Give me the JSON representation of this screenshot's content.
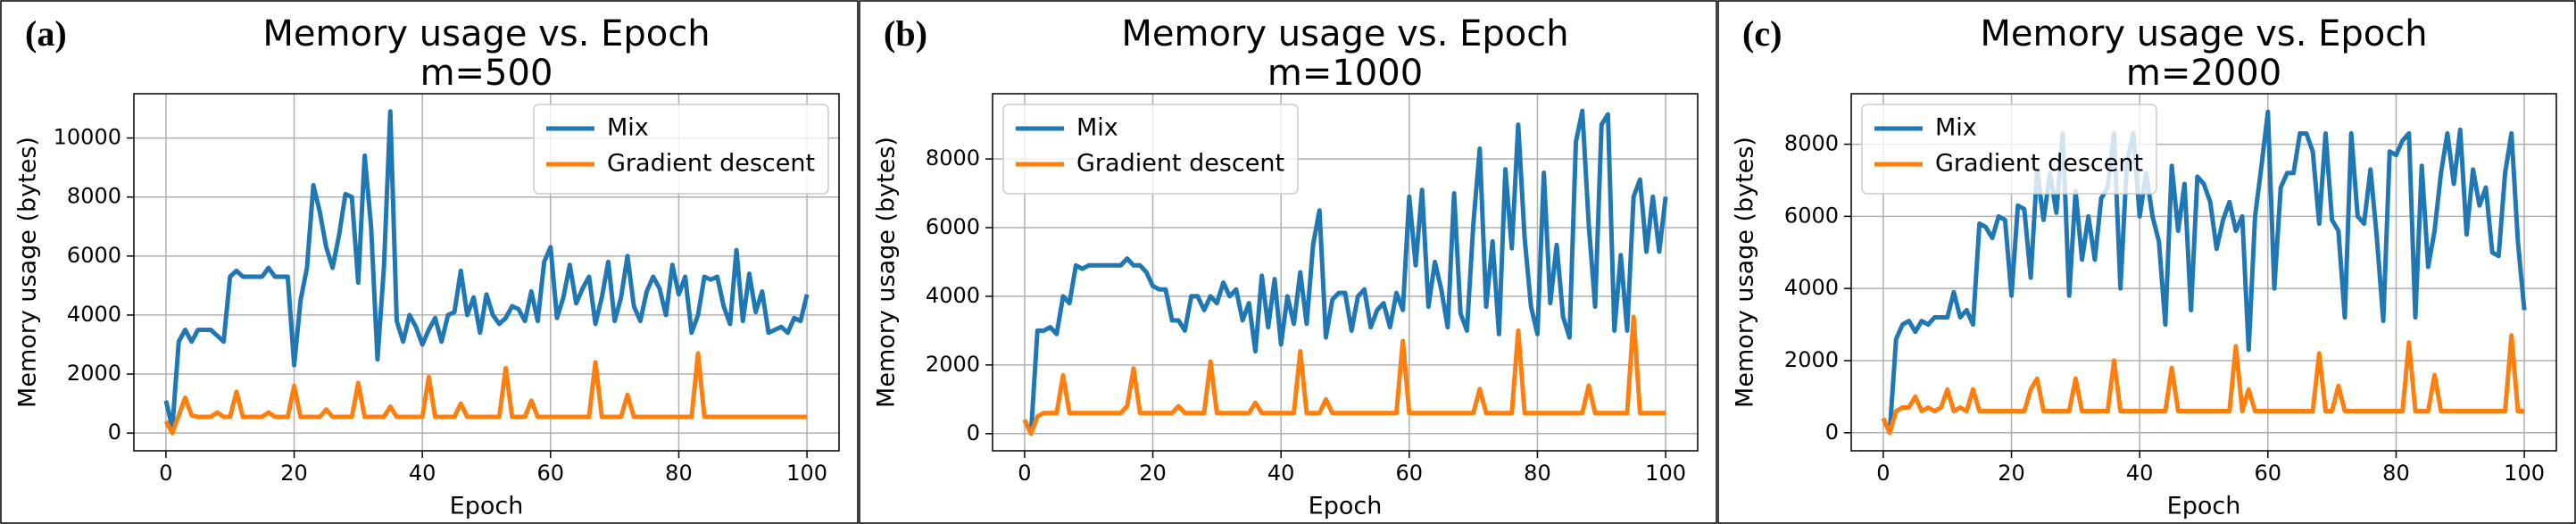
{
  "chart_data": [
    {
      "type": "line",
      "panel_label": "(a)",
      "title": "Memory usage vs. Epoch",
      "subtitle": "m=500",
      "x_label": "Epoch",
      "y_label": "Memory usage (bytes)",
      "legend": "upper right",
      "grid": true,
      "xlim": [
        -5,
        105
      ],
      "xticks": [
        0,
        20,
        40,
        60,
        80,
        100
      ],
      "ylim": [
        -600,
        11500
      ],
      "yticks": [
        0,
        2000,
        4000,
        6000,
        8000,
        10000
      ],
      "x": [
        0,
        1,
        2,
        3,
        4,
        5,
        6,
        7,
        8,
        9,
        10,
        11,
        12,
        13,
        14,
        15,
        16,
        17,
        18,
        19,
        20,
        21,
        22,
        23,
        24,
        25,
        26,
        27,
        28,
        29,
        30,
        31,
        32,
        33,
        34,
        35,
        36,
        37,
        38,
        39,
        40,
        41,
        42,
        43,
        44,
        45,
        46,
        47,
        48,
        49,
        50,
        51,
        52,
        53,
        54,
        55,
        56,
        57,
        58,
        59,
        60,
        61,
        62,
        63,
        64,
        65,
        66,
        67,
        68,
        69,
        70,
        71,
        72,
        73,
        74,
        75,
        76,
        77,
        78,
        79,
        80,
        81,
        82,
        83,
        84,
        85,
        86,
        87,
        88,
        89,
        90,
        91,
        92,
        93,
        94,
        95,
        96,
        97,
        98,
        99,
        100
      ],
      "series": [
        {
          "name": "Mix",
          "color": "#1f77b4",
          "values": [
            1100,
            200,
            3100,
            3500,
            3100,
            3500,
            3500,
            3500,
            3300,
            3100,
            5300,
            5500,
            5300,
            5300,
            5300,
            5300,
            5600,
            5300,
            5300,
            5300,
            2300,
            4500,
            5600,
            8400,
            7500,
            6300,
            5600,
            6700,
            8100,
            8000,
            5100,
            9400,
            7000,
            2500,
            5600,
            10900,
            3800,
            3100,
            4000,
            3600,
            3000,
            3500,
            3900,
            3100,
            4000,
            4100,
            5500,
            4000,
            4600,
            3400,
            4700,
            4000,
            3700,
            3900,
            4300,
            4200,
            3800,
            4800,
            3800,
            5800,
            6300,
            3900,
            4600,
            5700,
            4400,
            4900,
            5300,
            3700,
            4600,
            5800,
            3800,
            4600,
            6000,
            4300,
            3800,
            4800,
            5300,
            4900,
            4000,
            5700,
            4700,
            5300,
            3400,
            4000,
            5300,
            5200,
            5300,
            4300,
            3700,
            6200,
            3800,
            5400,
            4100,
            4800,
            3400,
            3500,
            3600,
            3400,
            3900,
            3800,
            4700
          ]
        },
        {
          "name": "Gradient descent",
          "color": "#ff7f0e",
          "values": [
            400,
            0,
            600,
            1200,
            600,
            550,
            550,
            550,
            700,
            550,
            550,
            1400,
            550,
            550,
            550,
            550,
            700,
            550,
            550,
            550,
            1600,
            550,
            550,
            550,
            550,
            800,
            550,
            550,
            550,
            550,
            1700,
            550,
            550,
            550,
            550,
            900,
            550,
            550,
            550,
            550,
            550,
            1900,
            550,
            550,
            550,
            550,
            1000,
            550,
            550,
            550,
            550,
            550,
            550,
            2200,
            550,
            550,
            550,
            1100,
            550,
            550,
            550,
            550,
            550,
            550,
            550,
            550,
            550,
            2400,
            550,
            550,
            550,
            550,
            1300,
            550,
            550,
            550,
            550,
            550,
            550,
            550,
            550,
            550,
            550,
            2700,
            550,
            550,
            550,
            550,
            550,
            550,
            550,
            550,
            550,
            550,
            550,
            550,
            550,
            550,
            550,
            550,
            550
          ]
        }
      ]
    },
    {
      "type": "line",
      "panel_label": "(b)",
      "title": "Memory usage vs. Epoch",
      "subtitle": "m=1000",
      "x_label": "Epoch",
      "y_label": "Memory usage (bytes)",
      "legend": "upper left",
      "grid": true,
      "xlim": [
        -5,
        105
      ],
      "xticks": [
        0,
        20,
        40,
        60,
        80,
        100
      ],
      "ylim": [
        -500,
        9900
      ],
      "yticks": [
        0,
        2000,
        4000,
        6000,
        8000
      ],
      "x": [
        0,
        1,
        2,
        3,
        4,
        5,
        6,
        7,
        8,
        9,
        10,
        11,
        12,
        13,
        14,
        15,
        16,
        17,
        18,
        19,
        20,
        21,
        22,
        23,
        24,
        25,
        26,
        27,
        28,
        29,
        30,
        31,
        32,
        33,
        34,
        35,
        36,
        37,
        38,
        39,
        40,
        41,
        42,
        43,
        44,
        45,
        46,
        47,
        48,
        49,
        50,
        51,
        52,
        53,
        54,
        55,
        56,
        57,
        58,
        59,
        60,
        61,
        62,
        63,
        64,
        65,
        66,
        67,
        68,
        69,
        70,
        71,
        72,
        73,
        74,
        75,
        76,
        77,
        78,
        79,
        80,
        81,
        82,
        83,
        84,
        85,
        86,
        87,
        88,
        89,
        90,
        91,
        92,
        93,
        94,
        95,
        96,
        97,
        98,
        99,
        100
      ],
      "series": [
        {
          "name": "Mix",
          "color": "#1f77b4",
          "values": [
            400,
            0,
            3000,
            3000,
            3100,
            2900,
            4000,
            3800,
            4900,
            4800,
            4900,
            4900,
            4900,
            4900,
            4900,
            4900,
            5100,
            4900,
            4900,
            4700,
            4300,
            4200,
            4200,
            3300,
            3300,
            3000,
            4000,
            4000,
            3600,
            4000,
            3800,
            4400,
            4000,
            4200,
            3300,
            3800,
            2400,
            4600,
            3100,
            4500,
            2600,
            4000,
            3200,
            4700,
            3200,
            5500,
            6500,
            2800,
            3900,
            4100,
            4100,
            3000,
            4000,
            4200,
            3100,
            3600,
            3800,
            3100,
            4100,
            3600,
            6900,
            4900,
            7100,
            3700,
            5000,
            4200,
            3100,
            7000,
            3500,
            3000,
            6100,
            8300,
            3700,
            5600,
            2900,
            7700,
            5400,
            9000,
            5700,
            3700,
            2900,
            7600,
            3800,
            5500,
            3400,
            2800,
            8500,
            9400,
            6100,
            3700,
            9000,
            9300,
            3000,
            5200,
            3000,
            6900,
            7400,
            5300,
            6900,
            5300,
            6900
          ]
        },
        {
          "name": "Gradient descent",
          "color": "#ff7f0e",
          "values": [
            400,
            0,
            500,
            600,
            600,
            600,
            1700,
            600,
            600,
            600,
            600,
            600,
            600,
            600,
            600,
            600,
            800,
            1900,
            600,
            600,
            600,
            600,
            600,
            600,
            800,
            600,
            600,
            600,
            600,
            2100,
            600,
            600,
            600,
            600,
            600,
            600,
            900,
            600,
            600,
            600,
            600,
            600,
            600,
            2400,
            600,
            600,
            600,
            1000,
            600,
            600,
            600,
            600,
            600,
            600,
            600,
            600,
            600,
            600,
            600,
            2700,
            600,
            600,
            600,
            600,
            600,
            600,
            600,
            600,
            600,
            600,
            600,
            1300,
            600,
            600,
            600,
            600,
            600,
            3000,
            600,
            600,
            600,
            600,
            600,
            600,
            600,
            600,
            600,
            600,
            1400,
            600,
            600,
            600,
            600,
            600,
            600,
            3400,
            600,
            600,
            600,
            600,
            600
          ]
        }
      ]
    },
    {
      "type": "line",
      "panel_label": "(c)",
      "title": "Memory usage vs. Epoch",
      "subtitle": "m=2000",
      "x_label": "Epoch",
      "y_label": "Memory usage (bytes)",
      "legend": "upper left",
      "grid": true,
      "xlim": [
        -5,
        105
      ],
      "xticks": [
        0,
        20,
        40,
        60,
        80,
        100
      ],
      "ylim": [
        -500,
        9400
      ],
      "yticks": [
        0,
        2000,
        4000,
        6000,
        8000
      ],
      "x": [
        0,
        1,
        2,
        3,
        4,
        5,
        6,
        7,
        8,
        9,
        10,
        11,
        12,
        13,
        14,
        15,
        16,
        17,
        18,
        19,
        20,
        21,
        22,
        23,
        24,
        25,
        26,
        27,
        28,
        29,
        30,
        31,
        32,
        33,
        34,
        35,
        36,
        37,
        38,
        39,
        40,
        41,
        42,
        43,
        44,
        45,
        46,
        47,
        48,
        49,
        50,
        51,
        52,
        53,
        54,
        55,
        56,
        57,
        58,
        59,
        60,
        61,
        62,
        63,
        64,
        65,
        66,
        67,
        68,
        69,
        70,
        71,
        72,
        73,
        74,
        75,
        76,
        77,
        78,
        79,
        80,
        81,
        82,
        83,
        84,
        85,
        86,
        87,
        88,
        89,
        90,
        91,
        92,
        93,
        94,
        95,
        96,
        97,
        98,
        99,
        100
      ],
      "series": [
        {
          "name": "Mix",
          "color": "#1f77b4",
          "values": [
            400,
            0,
            2600,
            3000,
            3100,
            2800,
            3100,
            3000,
            3200,
            3200,
            3200,
            3900,
            3200,
            3400,
            3000,
            5800,
            5700,
            5400,
            6000,
            5900,
            3800,
            6300,
            6200,
            4300,
            7300,
            5900,
            7200,
            6100,
            8300,
            3800,
            6700,
            4800,
            6000,
            4800,
            6500,
            6800,
            8300,
            4000,
            7500,
            8300,
            6000,
            7200,
            6000,
            5300,
            3000,
            7400,
            5600,
            6900,
            3400,
            7100,
            6900,
            6400,
            5100,
            5900,
            6400,
            5600,
            6000,
            2300,
            6000,
            7400,
            8900,
            4000,
            6800,
            7200,
            7200,
            8300,
            8300,
            7800,
            5800,
            8300,
            5900,
            5600,
            3200,
            8300,
            6000,
            5800,
            7300,
            5400,
            3100,
            7800,
            7700,
            8100,
            8300,
            3200,
            7400,
            4600,
            5600,
            7200,
            8300,
            6900,
            8400,
            5500,
            7300,
            6300,
            6800,
            5000,
            4900,
            7200,
            8300,
            5300,
            3400
          ]
        },
        {
          "name": "Gradient descent",
          "color": "#ff7f0e",
          "values": [
            400,
            0,
            600,
            700,
            700,
            1000,
            600,
            700,
            600,
            700,
            1200,
            600,
            700,
            600,
            1200,
            600,
            600,
            600,
            600,
            600,
            600,
            600,
            600,
            1200,
            1500,
            600,
            600,
            600,
            600,
            600,
            1500,
            600,
            600,
            600,
            600,
            600,
            2000,
            600,
            600,
            600,
            600,
            600,
            600,
            600,
            600,
            1800,
            600,
            600,
            600,
            600,
            600,
            600,
            600,
            600,
            600,
            2400,
            600,
            1200,
            600,
            600,
            600,
            600,
            600,
            600,
            600,
            600,
            600,
            600,
            2200,
            600,
            600,
            1300,
            600,
            600,
            600,
            600,
            600,
            600,
            600,
            600,
            600,
            600,
            2500,
            600,
            600,
            600,
            1600,
            600,
            600,
            600,
            600,
            600,
            600,
            600,
            600,
            600,
            600,
            600,
            2700,
            600,
            600
          ]
        }
      ]
    }
  ]
}
